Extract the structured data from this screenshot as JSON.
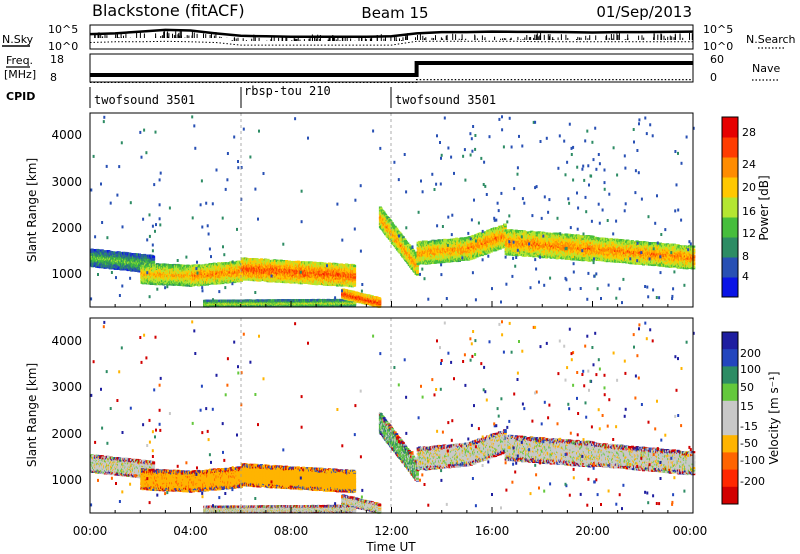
{
  "header": {
    "station": "Blackstone (fitACF)",
    "beam": "Beam 15",
    "date": "01/Sep/2013"
  },
  "top_panels": {
    "nsky_label": "N.Sky",
    "nsearch_label": "N.Search",
    "counts_ticks": [
      "10^5",
      "10^0"
    ],
    "freq_label_1": "Freq.",
    "freq_label_2": "[MHz]",
    "freq_ticks": [
      "18",
      "8"
    ],
    "nave_label": "Nave",
    "nave_ticks": [
      "60",
      "0"
    ],
    "cpid_label": "CPID"
  },
  "cpid_segments": [
    {
      "label": "twofsound 3501",
      "start_hour": 0
    },
    {
      "label": "rbsp-tou 210",
      "start_hour": 6
    },
    {
      "label": "twofsound 3501",
      "start_hour": 12
    }
  ],
  "axes": {
    "xlabel": "Time UT",
    "x_ticks": [
      "00:00",
      "04:00",
      "08:00",
      "12:00",
      "16:00",
      "20:00",
      "00:00"
    ],
    "ylabel": "Slant Range [km]",
    "y_ticks": [
      "1000",
      "2000",
      "3000",
      "4000"
    ]
  },
  "colorbars": {
    "power": {
      "label": "Power [dB]",
      "ticks": [
        "4",
        "8",
        "12",
        "16",
        "20",
        "24",
        "28"
      ],
      "colors": [
        "#0a14e6",
        "#2850b4",
        "#2d8c64",
        "#46be3c",
        "#b4e632",
        "#ffc800",
        "#ff8c00",
        "#ff3c00",
        "#e60000"
      ]
    },
    "velocity": {
      "label": "Velocity [m s⁻¹]",
      "ticks": [
        "200",
        "100",
        "50",
        "15",
        "-15",
        "-50",
        "-100",
        "-200"
      ],
      "colors": [
        "#1e1ea0",
        "#2346be",
        "#2d8c64",
        "#64c83c",
        "#c8c8c8",
        "#c8c8c8",
        "#ffb400",
        "#ff6400",
        "#ff2800",
        "#d20000"
      ]
    }
  },
  "chart_data": [
    {
      "type": "line",
      "title": "N.Sky / N.Search",
      "x": [
        0,
        1,
        2,
        3,
        4,
        5,
        6,
        7,
        8,
        9,
        10,
        11,
        12,
        13,
        14,
        15,
        16,
        17,
        18,
        19,
        20,
        21,
        22,
        23,
        24
      ],
      "series": [
        {
          "name": "N.Sky",
          "values": [
            2000,
            3000,
            8000,
            20000,
            15000,
            3000,
            800,
            600,
            500,
            500,
            500,
            500,
            600,
            3000,
            6000,
            6000,
            8000,
            7000,
            7000,
            6000,
            5000,
            6000,
            6000,
            7000,
            8000
          ]
        },
        {
          "name": "N.Search",
          "values": [
            20,
            30,
            30,
            40,
            30,
            20,
            5,
            5,
            5,
            5,
            5,
            5,
            5,
            40,
            40,
            40,
            40,
            40,
            30,
            30,
            30,
            30,
            30,
            30,
            30
          ]
        }
      ],
      "ylim": [
        1,
        100000
      ],
      "y_scale": "log"
    },
    {
      "type": "line",
      "title": "Freq. / Nave",
      "x": [
        0,
        13,
        13,
        24
      ],
      "series": [
        {
          "name": "Freq. [MHz]",
          "values": [
            10.5,
            10.5,
            14.8,
            14.8
          ]
        },
        {
          "name": "Nave",
          "values": [
            12,
            12,
            18,
            18
          ]
        }
      ],
      "ylim": [
        8,
        18
      ]
    },
    {
      "type": "heatmap",
      "title": "Power [dB]",
      "xlabel": "Time UT",
      "ylabel": "Slant Range [km]",
      "xlim": [
        0,
        24
      ],
      "ylim": [
        180,
        4500
      ],
      "clim": [
        0,
        30
      ],
      "echo_bands": [
        {
          "t_start": 0,
          "t_end": 2.5,
          "range_start": 1300,
          "range_end": 1150,
          "width": 380,
          "power": 13
        },
        {
          "t_start": 2.0,
          "t_end": 4.0,
          "range_start": 950,
          "range_end": 900,
          "width": 450,
          "power": 20
        },
        {
          "t_start": 4.0,
          "t_end": 6.0,
          "range_start": 900,
          "range_end": 1000,
          "width": 450,
          "power": 22
        },
        {
          "t_start": 6.0,
          "t_end": 10.5,
          "range_start": 1050,
          "range_end": 900,
          "width": 480,
          "power": 24
        },
        {
          "t_start": 4.5,
          "t_end": 10.5,
          "range_start": 280,
          "range_end": 300,
          "width": 130,
          "power": 16
        },
        {
          "t_start": 10.0,
          "t_end": 11.5,
          "range_start": 500,
          "range_end": 300,
          "width": 200,
          "power": 26
        },
        {
          "t_start": 11.5,
          "t_end": 13.0,
          "range_start": 2200,
          "range_end": 1100,
          "width": 450,
          "power": 21
        },
        {
          "t_start": 13.0,
          "t_end": 15.0,
          "range_start": 1400,
          "range_end": 1500,
          "width": 500,
          "power": 21
        },
        {
          "t_start": 15.0,
          "t_end": 16.5,
          "range_start": 1500,
          "range_end": 1800,
          "width": 500,
          "power": 22
        },
        {
          "t_start": 16.5,
          "t_end": 20.0,
          "range_start": 1650,
          "range_end": 1500,
          "width": 550,
          "power": 22
        },
        {
          "t_start": 20.0,
          "t_end": 24.0,
          "range_start": 1500,
          "range_end": 1300,
          "width": 500,
          "power": 22
        }
      ]
    },
    {
      "type": "heatmap",
      "title": "Velocity [m s-1]",
      "xlabel": "Time UT",
      "ylabel": "Slant Range [km]",
      "xlim": [
        0,
        24
      ],
      "ylim": [
        180,
        4500
      ],
      "clim": [
        -200,
        200
      ],
      "echo_bands": [
        {
          "t_start": 0,
          "t_end": 2.5,
          "range_start": 1250,
          "range_end": 1150,
          "width": 400,
          "velocity": 0
        },
        {
          "t_start": 2.0,
          "t_end": 4.0,
          "range_start": 950,
          "range_end": 900,
          "width": 450,
          "velocity": -60
        },
        {
          "t_start": 4.0,
          "t_end": 6.0,
          "range_start": 900,
          "range_end": 1000,
          "width": 450,
          "velocity": -60
        },
        {
          "t_start": 6.0,
          "t_end": 10.5,
          "range_start": 1050,
          "range_end": 900,
          "width": 480,
          "velocity": -50
        },
        {
          "t_start": 4.5,
          "t_end": 10.5,
          "range_start": 280,
          "range_end": 300,
          "width": 130,
          "velocity": 0
        },
        {
          "t_start": 10.0,
          "t_end": 11.5,
          "range_start": 500,
          "range_end": 300,
          "width": 200,
          "velocity": 0
        },
        {
          "t_start": 11.5,
          "t_end": 13.0,
          "range_start": 2200,
          "range_end": 1100,
          "width": 450,
          "velocity": 25
        },
        {
          "t_start": 13.0,
          "t_end": 15.0,
          "range_start": 1400,
          "range_end": 1500,
          "width": 500,
          "velocity": 0
        },
        {
          "t_start": 15.0,
          "t_end": 16.5,
          "range_start": 1500,
          "range_end": 1800,
          "width": 500,
          "velocity": 0
        },
        {
          "t_start": 16.5,
          "t_end": 20.0,
          "range_start": 1650,
          "range_end": 1500,
          "width": 550,
          "velocity": 0
        },
        {
          "t_start": 20.0,
          "t_end": 24.0,
          "range_start": 1500,
          "range_end": 1300,
          "width": 500,
          "velocity": 0
        }
      ]
    }
  ]
}
